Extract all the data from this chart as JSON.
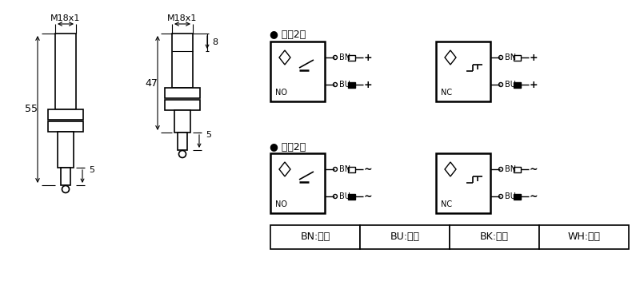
{
  "bg_color": "#ffffff",
  "line_color": "#000000",
  "fig_width": 8.0,
  "fig_height": 3.52,
  "dpi": 100,
  "s1_label": "M18x1",
  "s2_label": "M18x1",
  "dim_55": "55",
  "dim_5a": "5",
  "dim_47": "47",
  "dim_8": "8",
  "dim_5b": "5",
  "dc_label": "● 直流2线",
  "ac_label": "● 交流2线",
  "no_label": "NO",
  "nc_label": "NC",
  "bn_label": "BN",
  "bu_label": "BU",
  "plus_sym": "+",
  "tilde_sym": "~",
  "legend_bn": "BN:棕色",
  "legend_bu": "BU:兰色",
  "legend_bk": "BK:黑色",
  "legend_wh": "WH:白色"
}
